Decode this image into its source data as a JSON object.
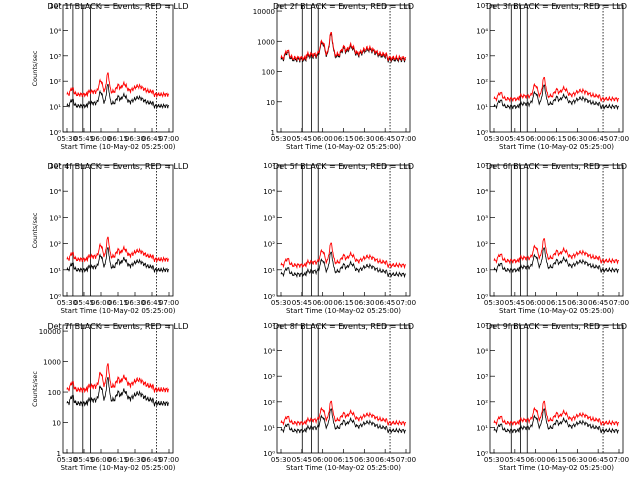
{
  "chart_data": [
    {
      "type": "line",
      "title": "Det 1f BLACK = Events, RED = LLD",
      "xlabel": "Start Time (10-May-02 05:25:00)",
      "ylabel": "Counts/sec",
      "x_ticks": [
        "05:30",
        "05:45",
        "06:00",
        "06:15",
        "06:30",
        "06:45",
        "07:00"
      ],
      "y_ticks": [
        "10⁰",
        "10¹",
        "10²",
        "10³",
        "10⁴",
        "10⁵"
      ],
      "ylim_log": [
        0,
        5
      ],
      "series": [
        {
          "color": "#000000",
          "base": 30,
          "offset": -0.45
        },
        {
          "color": "#ff0000",
          "base": 30,
          "offset": 0
        }
      ],
      "vlines": [
        0.09,
        0.18,
        0.25,
        0.85
      ]
    },
    {
      "type": "line",
      "title": "Det 2f BLACK = Events, RED = LLD",
      "xlabel": "Start Time (10-May-02 05:25:00)",
      "ylabel": "",
      "x_ticks": [
        "05:30",
        "05:45",
        "06:00",
        "06:15",
        "06:30",
        "06:45",
        "07:00"
      ],
      "y_ticks": [
        "1",
        "10",
        "100",
        "1000",
        "10000"
      ],
      "ylim_log": [
        0,
        4.2
      ],
      "series": [
        {
          "color": "#000000",
          "base": 280,
          "offset": -0.05
        },
        {
          "color": "#ff0000",
          "base": 280,
          "offset": 0
        }
      ],
      "vlines": [
        0.19,
        0.26,
        0.31,
        0.85
      ]
    },
    {
      "type": "line",
      "title": "Det 3f BLACK = Events, RED = LLD",
      "xlabel": "Start Time (10-May-02 05:25:00)",
      "ylabel": "",
      "x_ticks": [
        "05:30",
        "05:45",
        "06:00",
        "06:15",
        "06:30",
        "06:45",
        "07:00"
      ],
      "y_ticks": [
        "10⁰",
        "10¹",
        "10²",
        "10³",
        "10⁴",
        "10⁵"
      ],
      "ylim_log": [
        0,
        5
      ],
      "series": [
        {
          "color": "#000000",
          "base": 20,
          "offset": -0.3
        },
        {
          "color": "#ff0000",
          "base": 20,
          "offset": 0
        }
      ],
      "vlines": [
        0.16,
        0.23,
        0.28,
        0.85
      ]
    },
    {
      "type": "line",
      "title": "Det 4f BLACK = Events, RED = LLD",
      "xlabel": "Start Time (10-May-02 05:25:00)",
      "ylabel": "Counts/sec",
      "x_ticks": [
        "05:30",
        "05:45",
        "06:00",
        "06:15",
        "06:30",
        "06:45",
        "07:00"
      ],
      "y_ticks": [
        "10⁰",
        "10¹",
        "10²",
        "10³",
        "10⁴",
        "10⁵"
      ],
      "ylim_log": [
        0,
        5
      ],
      "series": [
        {
          "color": "#000000",
          "base": 25,
          "offset": -0.4
        },
        {
          "color": "#ff0000",
          "base": 25,
          "offset": 0
        }
      ],
      "vlines": [
        0.09,
        0.18,
        0.25,
        0.85
      ]
    },
    {
      "type": "line",
      "title": "Det 5f BLACK = Events, RED = LLD",
      "xlabel": "Start Time (10-May-02 05:25:00)",
      "ylabel": "",
      "x_ticks": [
        "05:30",
        "05:45",
        "06:00",
        "06:15",
        "06:30",
        "06:45",
        "07:00"
      ],
      "y_ticks": [
        "10⁰",
        "10¹",
        "10²",
        "10³",
        "10⁴",
        "10⁵"
      ],
      "ylim_log": [
        0,
        5
      ],
      "series": [
        {
          "color": "#000000",
          "base": 15,
          "offset": -0.35
        },
        {
          "color": "#ff0000",
          "base": 15,
          "offset": 0
        }
      ],
      "vlines": [
        0.19,
        0.26,
        0.31,
        0.85
      ]
    },
    {
      "type": "line",
      "title": "Det 6f BLACK = Events, RED = LLD",
      "xlabel": "Start Time (10-May-02 05:25:00)",
      "ylabel": "",
      "x_ticks": [
        "05:30",
        "05:45",
        "06:00",
        "06:15",
        "06:30",
        "06:45",
        "07:00"
      ],
      "y_ticks": [
        "10⁰",
        "10¹",
        "10²",
        "10³",
        "10⁴",
        "10⁵"
      ],
      "ylim_log": [
        0,
        5
      ],
      "series": [
        {
          "color": "#000000",
          "base": 22,
          "offset": -0.35
        },
        {
          "color": "#ff0000",
          "base": 22,
          "offset": 0
        }
      ],
      "vlines": [
        0.16,
        0.23,
        0.28,
        0.85
      ]
    },
    {
      "type": "line",
      "title": "Det 7f BLACK = Events, RED = LLD",
      "xlabel": "Start Time (10-May-02 05:25:00)",
      "ylabel": "Counts/sec",
      "x_ticks": [
        "05:30",
        "05:45",
        "06:00",
        "06:15",
        "06:30",
        "06:45",
        "07:00"
      ],
      "y_ticks": [
        "1",
        "10",
        "100",
        "1000",
        "10000"
      ],
      "ylim_log": [
        0,
        4.2
      ],
      "series": [
        {
          "color": "#000000",
          "base": 120,
          "offset": -0.45
        },
        {
          "color": "#ff0000",
          "base": 120,
          "offset": 0
        }
      ],
      "vlines": [
        0.09,
        0.18,
        0.25,
        0.85
      ]
    },
    {
      "type": "line",
      "title": "Det 8f BLACK = Events, RED = LLD",
      "xlabel": "Start Time (10-May-02 05:25:00)",
      "ylabel": "",
      "x_ticks": [
        "05:30",
        "05:45",
        "06:00",
        "06:15",
        "06:30",
        "06:45",
        "07:00"
      ],
      "y_ticks": [
        "10⁰",
        "10¹",
        "10²",
        "10³",
        "10⁴",
        "10⁵"
      ],
      "ylim_log": [
        0,
        5
      ],
      "series": [
        {
          "color": "#000000",
          "base": 15,
          "offset": -0.3
        },
        {
          "color": "#ff0000",
          "base": 15,
          "offset": 0
        }
      ],
      "vlines": [
        0.19,
        0.26,
        0.31,
        0.85
      ]
    },
    {
      "type": "line",
      "title": "Det 9f BLACK = Events, RED = LLD",
      "xlabel": "Start Time (10-May-02 05:25:00)",
      "ylabel": "",
      "x_ticks": [
        "05:30",
        "05:45",
        "06:00",
        "06:15",
        "06:30",
        "06:45",
        "07:00"
      ],
      "y_ticks": [
        "10⁰",
        "10¹",
        "10²",
        "10³",
        "10⁴",
        "10⁵"
      ],
      "ylim_log": [
        0,
        5
      ],
      "series": [
        {
          "color": "#000000",
          "base": 15,
          "offset": -0.3
        },
        {
          "color": "#ff0000",
          "base": 15,
          "offset": 0
        }
      ],
      "vlines": [
        0.16,
        0.23,
        0.28,
        0.85
      ]
    }
  ]
}
